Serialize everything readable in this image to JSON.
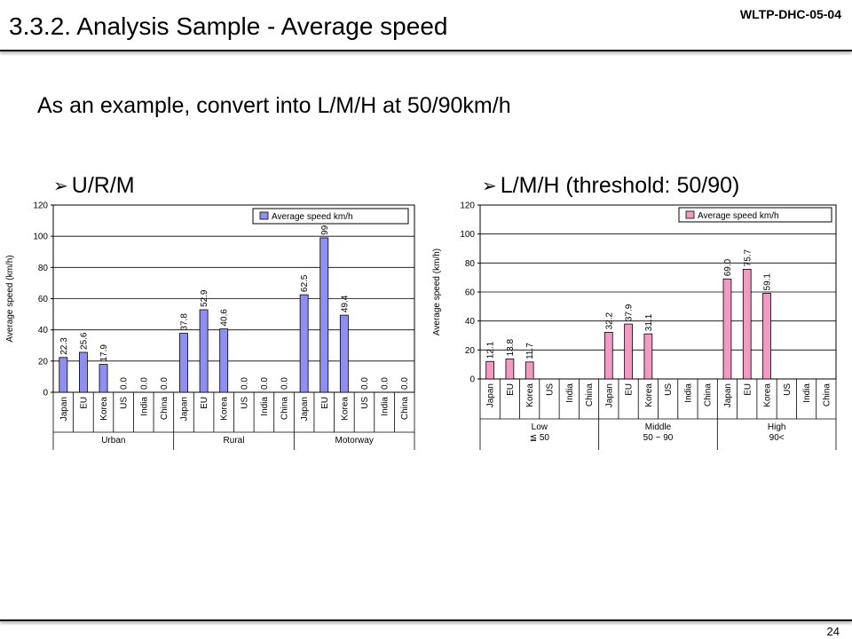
{
  "header": {
    "title": "3.3.2. Analysis Sample - Average speed",
    "doc_id": "WLTP-DHC-05-04"
  },
  "subtitle": "As an example, convert into L/M/H at 50/90km/h",
  "left_bullet": {
    "icon": "arrow-bullet-icon",
    "label": "U/R/M"
  },
  "right_bullet": {
    "icon": "arrow-bullet-icon",
    "label": "L/M/H (threshold: 50/90)"
  },
  "footer": {
    "page_number": "24"
  },
  "chart_data": [
    {
      "type": "bar",
      "ylabel": "Average speed (km/h)",
      "ylim": [
        0,
        120
      ],
      "yticks": [
        0,
        20,
        40,
        60,
        80,
        100,
        120
      ],
      "legend": "Average speed km/h",
      "legend_position": "top-right",
      "bar_color": "#8f8ff2",
      "categories": [
        "Japan",
        "EU",
        "Korea",
        "US",
        "India",
        "China",
        "Japan",
        "EU",
        "Korea",
        "US",
        "India",
        "China",
        "Japan",
        "EU",
        "Korea",
        "US",
        "India",
        "China"
      ],
      "values": [
        22.3,
        25.6,
        17.9,
        0.0,
        0.0,
        0.0,
        37.8,
        52.9,
        40.6,
        0.0,
        0.0,
        0.0,
        62.5,
        99,
        49.4,
        0.0,
        0.0,
        0.0
      ],
      "value_labels": [
        "22.3",
        "25.6",
        "17.9",
        "0.0",
        "0.0",
        "0.0",
        "37.8",
        "52.9",
        "40.6",
        "0.0",
        "0.0",
        "0.0",
        "62.5",
        "99",
        "49.4",
        "0.0",
        "0.0",
        "0.0"
      ],
      "groups": [
        {
          "name": "Urban",
          "sub": ""
        },
        {
          "name": "Rural",
          "sub": ""
        },
        {
          "name": "Motorway",
          "sub": ""
        }
      ]
    },
    {
      "type": "bar",
      "ylabel": "Average speed (km/h)",
      "ylim": [
        0,
        120
      ],
      "yticks": [
        0,
        20,
        40,
        60,
        80,
        100,
        120
      ],
      "legend": "Average speed km/h",
      "legend_position": "top-right",
      "bar_color": "#f29ac4",
      "categories": [
        "Japan",
        "EU",
        "Korea",
        "US",
        "India",
        "China",
        "Japan",
        "EU",
        "Korea",
        "US",
        "India",
        "China",
        "Japan",
        "EU",
        "Korea",
        "US",
        "India",
        "China"
      ],
      "values": [
        12.1,
        13.8,
        11.7,
        null,
        null,
        null,
        32.2,
        37.9,
        31.1,
        null,
        null,
        null,
        69.0,
        75.7,
        59.1,
        null,
        null,
        null
      ],
      "value_labels": [
        "12.1",
        "13.8",
        "11.7",
        "",
        "",
        "",
        "32.2",
        "37.9",
        "31.1",
        "",
        "",
        "",
        "69.0",
        "75.7",
        "59.1",
        "",
        "",
        ""
      ],
      "groups": [
        {
          "name": "Low",
          "sub": "≦ 50"
        },
        {
          "name": "Middle",
          "sub": "50 ~ 90"
        },
        {
          "name": "High",
          "sub": "90<"
        }
      ]
    }
  ]
}
